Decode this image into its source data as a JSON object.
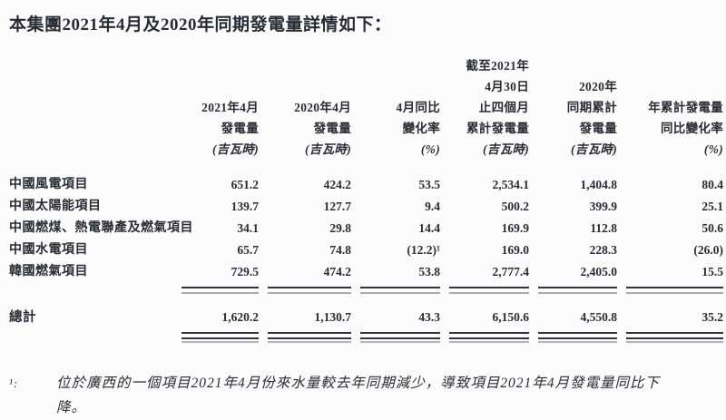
{
  "title": "本集團2021年4月及2020年同期發電量詳情如下：",
  "table": {
    "columns": [
      {
        "lines": [
          "2021年4月",
          "發電量"
        ],
        "unit": "(吉瓦時)"
      },
      {
        "lines": [
          "2020年4月",
          "發電量"
        ],
        "unit": "(吉瓦時)"
      },
      {
        "lines": [
          "4月同比",
          "變化率"
        ],
        "unit": "(%)"
      },
      {
        "lines": [
          "截至2021年",
          "4月30日",
          "止四個月",
          "累計發電量"
        ],
        "unit": "(吉瓦時)"
      },
      {
        "lines": [
          "2020年",
          "同期累計",
          "發電量"
        ],
        "unit": "(吉瓦時)"
      },
      {
        "lines": [
          "年累計發電量",
          "同比變化率"
        ],
        "unit": "(%)"
      }
    ],
    "rows": [
      {
        "label": "中國風電項目",
        "values": [
          "651.2",
          "424.2",
          "53.5",
          "2,534.1",
          "1,404.8",
          "80.4"
        ]
      },
      {
        "label": "中國太陽能項目",
        "values": [
          "139.7",
          "127.7",
          "9.4",
          "500.2",
          "399.9",
          "25.1"
        ]
      },
      {
        "label": "中國燃煤、熱電聯產及燃氣項目",
        "values": [
          "34.1",
          "29.8",
          "14.4",
          "169.9",
          "112.8",
          "50.6"
        ]
      },
      {
        "label": "中國水電項目",
        "values": [
          "65.7",
          "74.8",
          "(12.2)¹",
          "169.0",
          "228.3",
          "(26.0)"
        ]
      },
      {
        "label": "韓國燃氣項目",
        "values": [
          "729.5",
          "474.2",
          "53.8",
          "2,777.4",
          "2,405.0",
          "15.5"
        ]
      }
    ],
    "total": {
      "label": "總計",
      "values": [
        "1,620.2",
        "1,130.7",
        "43.3",
        "6,150.6",
        "4,550.8",
        "35.2"
      ]
    }
  },
  "footnote": {
    "marker": "¹:",
    "lines": [
      "位於廣西的一個項目2021年4月份來水量較去年同期減少，導致項目2021年4月發電量同比下",
      "降。"
    ]
  },
  "colors": {
    "text": "#2b2b36",
    "rule_dark": "#33333d",
    "rule_echo": "#a9a9b0",
    "background": "#fcfcfc"
  }
}
